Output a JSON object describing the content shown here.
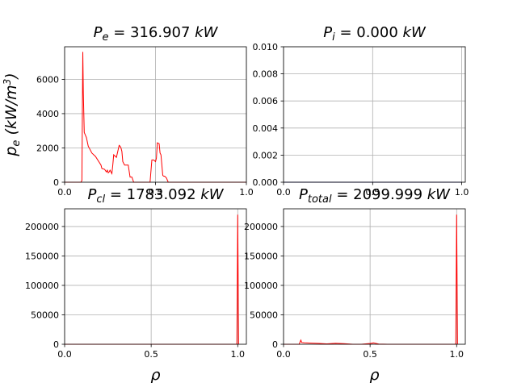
{
  "chart_data": [
    {
      "type": "line",
      "title": "P_e = 316.907 kW",
      "title_parts": {
        "sym": "P",
        "sub": "e",
        "value": "316.907",
        "unit": "kW"
      },
      "xlabel": "",
      "ylabel": "p_e (kW/m^3)",
      "ylabel_parts": {
        "sym": "p",
        "sub": "e",
        "units_open": "(kW/m",
        "units_sup": "3",
        "units_close": ")"
      },
      "xlim": [
        0.0,
        1.0
      ],
      "ylim": [
        0,
        7900
      ],
      "x_ticks": [
        0.0,
        0.5,
        1.0
      ],
      "x_tick_labels": [
        "0.0",
        "0.5",
        "1.0"
      ],
      "y_ticks": [
        0,
        2000,
        4000,
        6000
      ],
      "y_tick_labels": [
        "0",
        "2000",
        "4000",
        "6000"
      ],
      "grid": true,
      "color": "#ff0000",
      "x": [
        0.0,
        0.09,
        0.095,
        0.1,
        0.103,
        0.108,
        0.12,
        0.13,
        0.15,
        0.17,
        0.2,
        0.205,
        0.22,
        0.23,
        0.235,
        0.24,
        0.245,
        0.25,
        0.26,
        0.265,
        0.27,
        0.28,
        0.285,
        0.3,
        0.305,
        0.31,
        0.315,
        0.32,
        0.33,
        0.35,
        0.36,
        0.37,
        0.38,
        0.39,
        0.46,
        0.47,
        0.48,
        0.49,
        0.5,
        0.505,
        0.51,
        0.52,
        0.525,
        0.53,
        0.54,
        0.545,
        0.55,
        0.56,
        0.57,
        0.6,
        1.0
      ],
      "values": [
        0,
        0,
        100,
        7600,
        5200,
        2900,
        2600,
        2100,
        1700,
        1500,
        1000,
        800,
        750,
        600,
        700,
        550,
        600,
        700,
        500,
        1000,
        1600,
        1500,
        1450,
        2150,
        2100,
        2000,
        1800,
        1200,
        1000,
        1000,
        300,
        300,
        0,
        0,
        0,
        0,
        1300,
        1300,
        1200,
        1400,
        2300,
        2250,
        1700,
        1600,
        400,
        350,
        350,
        250,
        0,
        0,
        0
      ]
    },
    {
      "type": "line",
      "title": "P_i = 0.000 kW",
      "title_parts": {
        "sym": "P",
        "sub": "i",
        "value": "0.000",
        "unit": "kW"
      },
      "xlabel": "",
      "ylabel": "",
      "xlim": [
        0.0,
        1.02
      ],
      "ylim": [
        0.0,
        0.01
      ],
      "x_ticks": [
        0.0,
        0.5,
        1.0
      ],
      "x_tick_labels": [
        "0.0",
        "0.5",
        "1.0"
      ],
      "y_ticks": [
        0.0,
        0.002,
        0.004,
        0.006,
        0.008,
        0.01
      ],
      "y_tick_labels": [
        "0.000",
        "0.002",
        "0.004",
        "0.006",
        "0.008",
        "0.010"
      ],
      "grid": true,
      "color": "#000080",
      "x": [
        0.0,
        1.0
      ],
      "values": [
        0,
        0
      ]
    },
    {
      "type": "line",
      "title": "P_cl = 1783.092 kW",
      "title_parts": {
        "sym": "P",
        "sub": "cl",
        "value": "1783.092",
        "unit": "kW"
      },
      "xlabel": "ρ",
      "ylabel": "",
      "xlim": [
        0.0,
        1.05
      ],
      "ylim": [
        0,
        230000
      ],
      "x_ticks": [
        0.0,
        0.5,
        1.0
      ],
      "x_tick_labels": [
        "0.0",
        "0.5",
        "1.0"
      ],
      "y_ticks": [
        0,
        50000,
        100000,
        150000,
        200000
      ],
      "y_tick_labels": [
        "0",
        "50000",
        "100000",
        "150000",
        "200000"
      ],
      "grid": true,
      "color": "#ff0000",
      "x": [
        0.0,
        0.99,
        0.995,
        1.0,
        1.005
      ],
      "values": [
        0,
        0,
        500,
        220000,
        0
      ]
    },
    {
      "type": "line",
      "title": "P_total = 2099.999 kW",
      "title_parts": {
        "sym": "P",
        "sub": "total",
        "value": "2099.999",
        "unit": "kW"
      },
      "xlabel": "ρ",
      "ylabel": "",
      "xlim": [
        0.0,
        1.05
      ],
      "ylim": [
        0,
        230000
      ],
      "x_ticks": [
        0.0,
        0.5,
        1.0
      ],
      "x_tick_labels": [
        "0.0",
        "0.5",
        "1.0"
      ],
      "y_ticks": [
        0,
        50000,
        100000,
        150000,
        200000
      ],
      "y_tick_labels": [
        "0",
        "50000",
        "100000",
        "150000",
        "200000"
      ],
      "grid": true,
      "color": "#ff0000",
      "x": [
        0.0,
        0.09,
        0.1,
        0.105,
        0.12,
        0.2,
        0.25,
        0.3,
        0.35,
        0.4,
        0.45,
        0.5,
        0.52,
        0.55,
        0.6,
        0.99,
        0.995,
        1.0,
        1.005
      ],
      "values": [
        0,
        0,
        7000,
        3000,
        2500,
        1500,
        700,
        1800,
        1000,
        0,
        0,
        1300,
        2300,
        400,
        0,
        0,
        500,
        220000,
        0
      ]
    }
  ]
}
